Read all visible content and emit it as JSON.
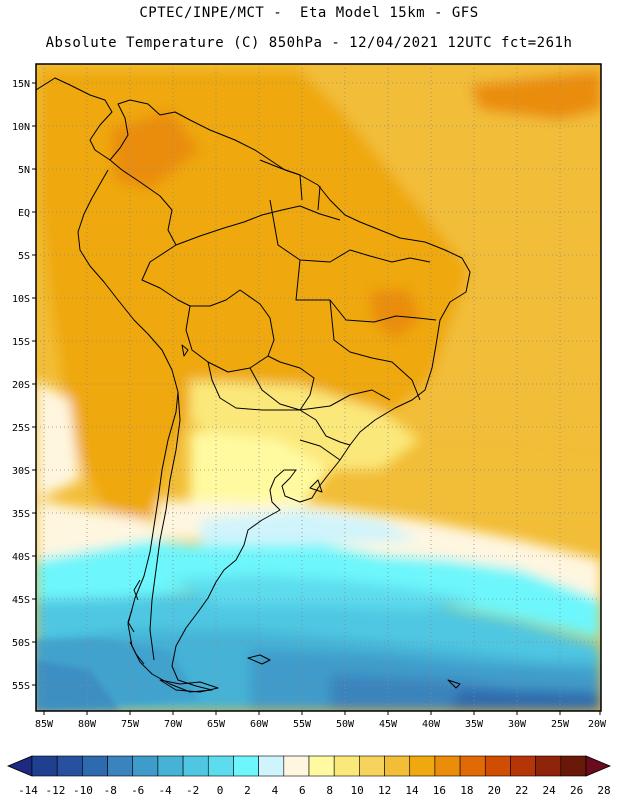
{
  "header": {
    "line1": "CPTEC/INPE/MCT -  Eta Model 15km - GFS",
    "line2": "Absolute Temperature (C) 850hPa - 12/04/2021 12UTC fct=261h"
  },
  "map": {
    "lat_labels": [
      "15N",
      "10N",
      "5N",
      "EQ",
      "5S",
      "10S",
      "15S",
      "20S",
      "25S",
      "30S",
      "35S",
      "40S",
      "45S",
      "50S",
      "55S"
    ],
    "lon_labels": [
      "85W",
      "80W",
      "75W",
      "70W",
      "65W",
      "60W",
      "55W",
      "50W",
      "45W",
      "40W",
      "35W",
      "30W",
      "25W",
      "20W"
    ]
  },
  "colorbar": {
    "labels": [
      "-14",
      "-12",
      "-10",
      "-8",
      "-6",
      "-4",
      "-2",
      "0",
      "2",
      "4",
      "6",
      "8",
      "10",
      "12",
      "14",
      "16",
      "18",
      "20",
      "22",
      "24",
      "26",
      "28"
    ],
    "colors": [
      "#1f3f8f",
      "#27509f",
      "#2e6aae",
      "#3a83bd",
      "#3f9bca",
      "#45b2d6",
      "#4fc7e2",
      "#5ddcee",
      "#6df6fb",
      "#d0f4fb",
      "#fff6e0",
      "#fffaa0",
      "#fbe87a",
      "#f6d35c",
      "#f2bd37",
      "#efa80d",
      "#ea8d0a",
      "#e06a06",
      "#d04e04",
      "#b33508",
      "#8e240a",
      "#6a1808"
    ],
    "triangle_low": "#1d2a80",
    "triangle_high": "#6a0c1e"
  }
}
